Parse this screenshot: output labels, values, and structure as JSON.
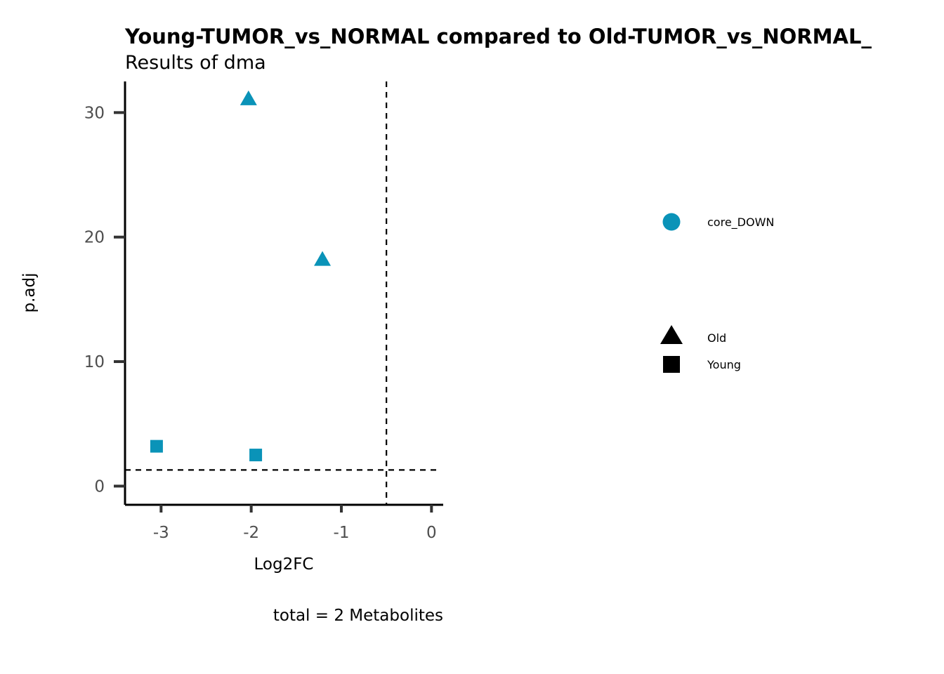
{
  "chart_data": {
    "type": "scatter",
    "title": "Young-TUMOR_vs_NORMAL compared to Old-TUMOR_vs_NORMAL_",
    "subtitle": "Results of dma",
    "xlabel": "Log2FC",
    "ylabel": "p.adj",
    "caption": "total = 2 Metabolites",
    "xlim": [
      -3.4,
      0.13
    ],
    "ylim": [
      -1.5,
      32.5
    ],
    "x_ticks": [
      -3,
      -2,
      -1,
      0
    ],
    "y_ticks": [
      0,
      10,
      20,
      30
    ],
    "x_tick_labels": [
      "-3",
      "-2",
      "-1",
      "0"
    ],
    "y_tick_labels": [
      "0",
      "10",
      "20",
      "30"
    ],
    "grid": false,
    "reference_lines": {
      "vertical_x": -0.5,
      "horizontal_y": 1.3
    },
    "points": [
      {
        "x": -2.03,
        "y": 31.1,
        "shape": "triangle",
        "group": "Old",
        "color_group": "core_DOWN"
      },
      {
        "x": -1.21,
        "y": 18.2,
        "shape": "triangle",
        "group": "Old",
        "color_group": "core_DOWN"
      },
      {
        "x": -3.05,
        "y": 3.2,
        "shape": "square",
        "group": "Young",
        "color_group": "core_DOWN"
      },
      {
        "x": -1.95,
        "y": 2.5,
        "shape": "square",
        "group": "Young",
        "color_group": "core_DOWN"
      }
    ],
    "legend_placement": "right",
    "legend": {
      "color": [
        {
          "label": "core_DOWN",
          "color": "#0a93b8",
          "shape": "circle"
        }
      ],
      "shape": [
        {
          "label": "Old",
          "shape": "triangle"
        },
        {
          "label": "Young",
          "shape": "square"
        }
      ]
    },
    "point_color": "#0a93b8"
  }
}
